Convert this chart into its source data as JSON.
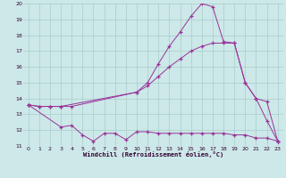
{
  "xlabel": "Windchill (Refroidissement éolien,°C)",
  "background_color": "#cce8e8",
  "grid_color": "#aacccc",
  "line_color": "#993399",
  "xlim": [
    -0.5,
    23.5
  ],
  "ylim": [
    11,
    20
  ],
  "yticks": [
    11,
    12,
    13,
    14,
    15,
    16,
    17,
    18,
    19,
    20
  ],
  "xticks": [
    0,
    1,
    2,
    3,
    4,
    5,
    6,
    7,
    8,
    9,
    10,
    11,
    12,
    13,
    14,
    15,
    16,
    17,
    18,
    19,
    20,
    21,
    22,
    23
  ],
  "series": [
    {
      "x": [
        0,
        1,
        2,
        3,
        4,
        10,
        11,
        12,
        13,
        14,
        15,
        16,
        17,
        18,
        19,
        20,
        21,
        22,
        23
      ],
      "y": [
        13.6,
        13.5,
        13.5,
        13.5,
        13.5,
        14.4,
        15.0,
        16.2,
        17.3,
        18.2,
        19.2,
        20.0,
        19.8,
        17.6,
        17.5,
        15.0,
        14.0,
        12.6,
        11.3
      ]
    },
    {
      "x": [
        0,
        3,
        4,
        5,
        6,
        7,
        8,
        9,
        10,
        11,
        12,
        13,
        14,
        15,
        16,
        17,
        18,
        19,
        20,
        21,
        22,
        23
      ],
      "y": [
        13.6,
        12.2,
        12.3,
        11.7,
        11.3,
        11.8,
        11.8,
        11.4,
        11.9,
        11.9,
        11.8,
        11.8,
        11.8,
        11.8,
        11.8,
        11.8,
        11.8,
        11.7,
        11.7,
        11.5,
        11.5,
        11.3
      ]
    },
    {
      "x": [
        0,
        1,
        2,
        3,
        10,
        11,
        12,
        13,
        14,
        15,
        16,
        17,
        18,
        19,
        20,
        21,
        22,
        23
      ],
      "y": [
        13.6,
        13.5,
        13.5,
        13.5,
        14.4,
        14.8,
        15.4,
        16.0,
        16.5,
        17.0,
        17.3,
        17.5,
        17.5,
        17.5,
        15.0,
        14.0,
        13.8,
        11.3
      ]
    }
  ]
}
